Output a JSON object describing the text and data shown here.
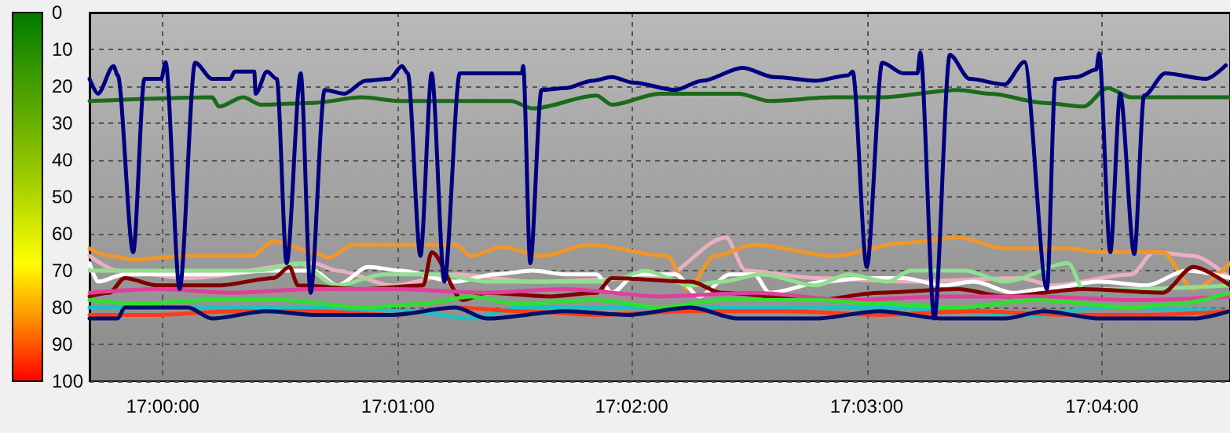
{
  "chart_data": {
    "type": "line",
    "marker": "none",
    "line_style": "solid",
    "grid": true,
    "xlim": [
      16.9948,
      17.0758
    ],
    "xticks": [
      {
        "value": 17,
        "label": "17:00:00"
      },
      {
        "value": 17.0167,
        "label": "17:01:00"
      },
      {
        "value": 17.0333,
        "label": "17:02:00"
      },
      {
        "value": 17.05,
        "label": "17:03:00"
      },
      {
        "value": 17.0667,
        "label": "17:04:00"
      }
    ],
    "ylim": [
      100,
      0
    ],
    "yticks": [
      0,
      10,
      20,
      30,
      40,
      50,
      60,
      70,
      80,
      90,
      100
    ],
    "series": [
      {
        "color": "#eab0c0",
        "x": [
          16.9948,
          16.9968,
          17.0018,
          17.0107,
          17.0124,
          17.0163,
          17.0208,
          17.0263,
          17.0353,
          17.04,
          17.0414,
          17.0464,
          17.0531,
          17.0609,
          17.0632,
          17.0688,
          17.0704,
          17.0732,
          17.0758
        ],
        "values": [
          66,
          70,
          72,
          68,
          70,
          74,
          71,
          73,
          72,
          61,
          70,
          72,
          73,
          72,
          74,
          71,
          65,
          66,
          72
        ]
      },
      {
        "color": "#f0962a",
        "x": [
          16.9948,
          16.9962,
          16.9979,
          17.0018,
          17.0063,
          17.0079,
          17.0107,
          17.0118,
          17.0135,
          17.0185,
          17.0208,
          17.0219,
          17.0241,
          17.0269,
          17.0303,
          17.0358,
          17.0373,
          17.0392,
          17.042,
          17.0476,
          17.0526,
          17.0565,
          17.0598,
          17.0643,
          17.0665,
          17.071,
          17.0732,
          17.0758
        ],
        "values": [
          64,
          66,
          67,
          66,
          66,
          62,
          65,
          66.5,
          63,
          63,
          63,
          66,
          63.5,
          66,
          63,
          66,
          75,
          66,
          63,
          66,
          62.5,
          61,
          64,
          64,
          65,
          65,
          75,
          68
        ]
      },
      {
        "color": "#ffffff",
        "x": [
          16.9948,
          16.9954,
          16.9973,
          17.0007,
          17.004,
          17.0074,
          17.0107,
          17.0124,
          17.0146,
          17.0169,
          17.0208,
          17.0236,
          17.0263,
          17.0286,
          17.0308,
          17.0319,
          17.0336,
          17.0364,
          17.0381,
          17.0403,
          17.042,
          17.0431,
          17.047,
          17.0498,
          17.0526,
          17.0554,
          17.0576,
          17.0604,
          17.0626,
          17.0665,
          17.0699,
          17.0727,
          17.0758
        ],
        "values": [
          68,
          73,
          71,
          71,
          71,
          70,
          70,
          74,
          69,
          70,
          73,
          71,
          70,
          71,
          71,
          76,
          71,
          71,
          77,
          71,
          71,
          76,
          73,
          72,
          72,
          74,
          73,
          76,
          75,
          73,
          74,
          70,
          72
        ]
      },
      {
        "color": "#90e090",
        "x": [
          16.9948,
          16.9973,
          17.0029,
          17.0068,
          17.0096,
          17.0124,
          17.0157,
          17.0196,
          17.023,
          17.0275,
          17.0308,
          17.0325,
          17.0342,
          17.0375,
          17.0397,
          17.0425,
          17.0464,
          17.0487,
          17.0515,
          17.0531,
          17.057,
          17.0598,
          17.0643,
          17.0654,
          17.0688,
          17.0758
        ],
        "values": [
          70,
          70,
          70,
          70,
          68,
          74,
          71,
          71,
          73,
          73,
          73,
          72,
          70,
          74,
          73,
          71,
          74,
          71,
          73,
          70,
          70,
          73,
          68,
          75,
          75,
          74
        ]
      },
      {
        "color": "#800000",
        "x": [
          16.9948,
          16.9962,
          16.9973,
          16.9996,
          17.004,
          17.0079,
          17.009,
          17.0096,
          17.0141,
          17.0185,
          17.0191,
          17.0213,
          17.023,
          17.0275,
          17.0308,
          17.0319,
          17.0375,
          17.0397,
          17.0464,
          17.0509,
          17.0565,
          17.0598,
          17.0654,
          17.071,
          17.0732,
          17.0758
        ],
        "values": [
          77,
          76,
          72,
          74,
          74,
          72,
          69,
          74,
          75,
          74,
          65,
          78,
          76,
          77,
          76,
          72,
          73,
          76,
          78,
          76,
          75,
          77,
          75,
          76,
          69,
          74
        ]
      },
      {
        "color": "#e0409a",
        "x": [
          16.9948,
          16.9996,
          17.0051,
          17.0107,
          17.0163,
          17.023,
          17.0286,
          17.0353,
          17.042,
          17.0487,
          17.0554,
          17.0621,
          17.0688,
          17.0758
        ],
        "values": [
          76,
          75,
          76,
          75,
          75,
          76,
          75,
          77,
          76,
          78,
          77,
          77,
          78,
          77
        ]
      },
      {
        "color": "#20c0c0",
        "x": [
          16.9948,
          17.0018,
          17.0107,
          17.0174,
          17.0219,
          17.0252,
          17.0353,
          17.0509,
          17.0621,
          17.0665,
          17.0758
        ],
        "values": [
          80,
          80,
          80,
          81,
          83,
          80,
          80,
          80,
          82,
          80,
          81
        ]
      },
      {
        "color": "#ff3b1a",
        "x": [
          16.9948,
          16.9996,
          17.0051,
          17.0107,
          17.0163,
          17.0208,
          17.0252,
          17.0308,
          17.0375,
          17.0442,
          17.0509,
          17.0576,
          17.0643,
          17.0699,
          17.0758
        ],
        "values": [
          82,
          82,
          81,
          81,
          82,
          80,
          81,
          82,
          81,
          81,
          82,
          81,
          82,
          82,
          81
        ]
      },
      {
        "color": "#30e030",
        "x": [
          16.9948,
          16.9984,
          17.0029,
          17.0085,
          17.0141,
          17.0185,
          17.0219,
          17.0252,
          17.0308,
          17.0353,
          17.0397,
          17.0464,
          17.0509,
          17.0565,
          17.0621,
          17.0688,
          17.0721,
          17.0758
        ],
        "values": [
          78,
          79,
          78,
          78,
          80,
          79,
          77,
          79,
          78,
          80,
          78,
          78,
          79,
          80,
          78,
          80,
          79,
          76
        ]
      },
      {
        "color": "#00106b",
        "x": [
          16.9948,
          16.9968,
          16.9973,
          17.0018,
          17.0035,
          17.0074,
          17.0107,
          17.0163,
          17.0208,
          17.023,
          17.0286,
          17.033,
          17.0375,
          17.0409,
          17.0464,
          17.0509,
          17.0554,
          17.0598,
          17.0626,
          17.0665,
          17.0732,
          17.0758
        ],
        "values": [
          83,
          83,
          80,
          80,
          83,
          81,
          82,
          82,
          80,
          83,
          81,
          82,
          80,
          83,
          83,
          81,
          83,
          83,
          81,
          83,
          83,
          81
        ]
      },
      {
        "color": "#1a6b1a",
        "x": [
          16.9948,
          17.0035,
          17.004,
          17.0057,
          17.007,
          17.0107,
          17.0141,
          17.0169,
          17.0208,
          17.0247,
          17.0263,
          17.0308,
          17.0319,
          17.0353,
          17.0409,
          17.0431,
          17.0476,
          17.0509,
          17.0565,
          17.0587,
          17.0626,
          17.0654,
          17.0671,
          17.0688,
          17.0758
        ],
        "values": [
          24,
          23,
          25.5,
          23,
          25,
          24.5,
          23,
          24,
          24,
          24,
          26,
          22.5,
          25,
          22,
          22,
          24,
          23,
          23,
          21,
          22,
          24.5,
          25.5,
          20.5,
          23,
          23
        ]
      },
      {
        "color": "#000080",
        "x": [
          16.9948,
          16.9954,
          16.9965,
          16.9968,
          16.9979,
          16.9987,
          16.9999,
          17.0002,
          17.0012,
          17.0023,
          17.0035,
          17.0048,
          17.0051,
          17.0065,
          17.0066,
          17.0074,
          17.0081,
          17.0088,
          17.0098,
          17.0105,
          17.0115,
          17.0129,
          17.0144,
          17.0161,
          17.017,
          17.0174,
          17.0183,
          17.0191,
          17.02,
          17.0211,
          17.0219,
          17.0255,
          17.0256,
          17.0261,
          17.0269,
          17.0286,
          17.0305,
          17.0319,
          17.0334,
          17.0364,
          17.0383,
          17.0412,
          17.0434,
          17.0464,
          17.0487,
          17.049,
          17.05,
          17.0511,
          17.0526,
          17.0536,
          17.0538,
          17.0548,
          17.0559,
          17.0573,
          17.0598,
          17.0612,
          17.0628,
          17.0634,
          17.0649,
          17.0663,
          17.0665,
          17.0673,
          17.068,
          17.069,
          17.0697,
          17.0712,
          17.0741,
          17.0755
        ],
        "values": [
          18,
          22,
          14.5,
          17,
          65,
          18,
          18,
          13.5,
          75,
          13.6,
          18,
          18,
          16,
          16,
          22,
          16,
          18,
          68,
          16.5,
          76,
          21,
          22,
          18.5,
          18,
          14.5,
          16.5,
          66,
          16.5,
          73,
          16.5,
          16.5,
          16.5,
          14.5,
          68,
          21,
          20.5,
          18.5,
          17.5,
          19,
          21,
          18.5,
          15,
          17.5,
          18.5,
          17,
          16,
          69,
          13.6,
          16.5,
          16.5,
          10.8,
          83,
          11.5,
          18,
          19.5,
          13.4,
          75,
          18,
          17.5,
          15.5,
          11,
          65,
          22,
          65.5,
          22.5,
          16.5,
          18,
          14.3
        ]
      }
    ]
  }
}
